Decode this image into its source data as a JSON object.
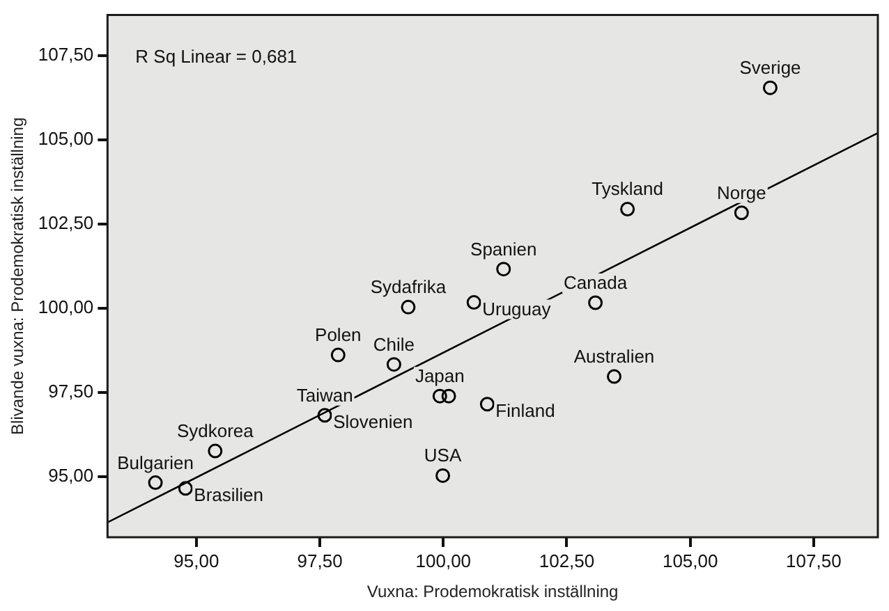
{
  "chart_data": {
    "type": "scatter",
    "xlabel": "Vuxna: Prodemokratisk inställning",
    "ylabel": "Blivande vuxna: Prodemokratisk inställning",
    "xlim": [
      93.2,
      108.8
    ],
    "ylim": [
      93.2,
      108.7
    ],
    "xticks": [
      {
        "value": 95,
        "label": "95,00"
      },
      {
        "value": 97.5,
        "label": "97,50"
      },
      {
        "value": 100,
        "label": "100,00"
      },
      {
        "value": 102.5,
        "label": "102,50"
      },
      {
        "value": 105,
        "label": "105,00"
      },
      {
        "value": 107.5,
        "label": "107,50"
      }
    ],
    "yticks": [
      {
        "value": 95,
        "label": "95,00"
      },
      {
        "value": 97.5,
        "label": "97,50"
      },
      {
        "value": 100,
        "label": "100,00"
      },
      {
        "value": 102.5,
        "label": "102,50"
      },
      {
        "value": 105,
        "label": "105,00"
      },
      {
        "value": 107.5,
        "label": "107,50"
      }
    ],
    "grid": false,
    "legend": false,
    "marker": "circle",
    "series": [
      {
        "color": "#000000",
        "x": [
          94.17,
          94.78,
          95.38,
          97.6,
          97.87,
          99.0,
          99.29,
          100.62,
          99.93,
          100.11,
          100.89,
          99.99,
          106.62,
          103.73,
          106.04,
          101.22,
          103.08,
          103.46
        ],
        "values": [
          94.82,
          94.65,
          95.76,
          96.82,
          98.61,
          98.33,
          100.03,
          100.17,
          97.39,
          97.39,
          97.15,
          95.03,
          106.54,
          102.94,
          102.83,
          101.16,
          100.16,
          97.97
        ]
      },
      {
        "type": "line",
        "marker": "none",
        "color": "#000000",
        "x": [
          93.2,
          108.8
        ],
        "values": [
          93.64,
          105.2
        ]
      }
    ],
    "annotations": [
      "R Sq Linear = 0,681",
      {
        "text": "Bulgarien",
        "x": 94.17,
        "y": 94.82
      },
      {
        "text": "Brasilien",
        "x": 94.78,
        "y": 94.65
      },
      {
        "text": "Sydkorea",
        "x": 95.38,
        "y": 95.76
      },
      {
        "text": "Taiwan",
        "x": 97.6,
        "y": 96.82
      },
      {
        "text": "Slovenien",
        "x": 97.6,
        "y": 96.82
      },
      {
        "text": "Polen",
        "x": 97.87,
        "y": 98.61
      },
      {
        "text": "Chile",
        "x": 99.0,
        "y": 98.33
      },
      {
        "text": "Sydafrika",
        "x": 99.29,
        "y": 100.03
      },
      {
        "text": "Uruguay",
        "x": 100.62,
        "y": 100.17
      },
      {
        "text": "Japan",
        "x": 99.93,
        "y": 97.39
      },
      {
        "text": "Finland",
        "x": 100.89,
        "y": 97.15
      },
      {
        "text": "USA",
        "x": 99.99,
        "y": 95.03
      },
      {
        "text": "Sverige",
        "x": 106.62,
        "y": 106.54
      },
      {
        "text": "Tyskland",
        "x": 103.73,
        "y": 102.94
      },
      {
        "text": "Norge",
        "x": 106.04,
        "y": 102.83
      },
      {
        "text": "Spanien",
        "x": 101.22,
        "y": 101.16
      },
      {
        "text": "Canada",
        "x": 103.08,
        "y": 100.16
      },
      {
        "text": "Australien",
        "x": 103.46,
        "y": 97.97
      }
    ]
  }
}
